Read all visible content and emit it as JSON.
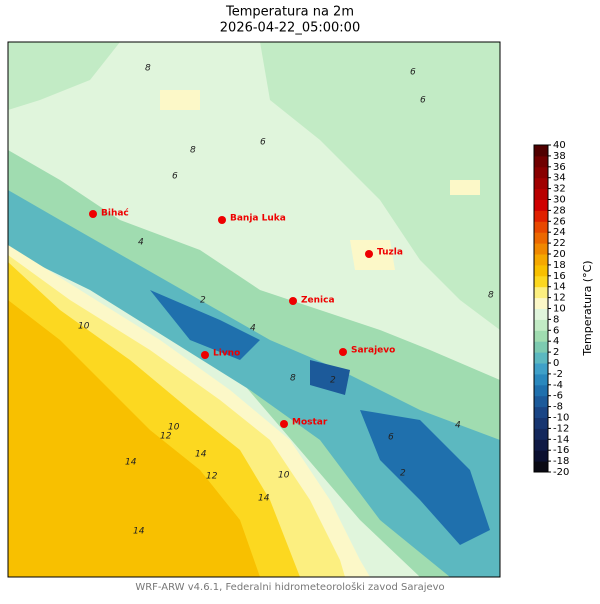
{
  "title": "Temperatura na 2m",
  "subtitle": "2026-04-22_05:00:00",
  "footer": "WRF-ARW v4.6.1, Federalni hidrometeorološki zavod Sarajevo",
  "cities": [
    "Bihać",
    "Banja Luka",
    "Tuzla",
    "Zenica",
    "Sarajevo",
    "Livno",
    "Mostar"
  ],
  "contour_labels": [
    8,
    6,
    6,
    8,
    6,
    4,
    2,
    2,
    4,
    10,
    10,
    12,
    14,
    14,
    14,
    12,
    10,
    14,
    8,
    6,
    4,
    2,
    8,
    6
  ],
  "colorbar": {
    "label": "Temperatura (°C)",
    "lim": [
      -20,
      40
    ],
    "ticks": [
      -20,
      -18,
      -16,
      -14,
      -12,
      -10,
      -8,
      -6,
      -4,
      -2,
      0,
      2,
      4,
      6,
      8,
      10,
      12,
      14,
      16,
      18,
      20,
      22,
      24,
      26,
      28,
      30,
      32,
      34,
      36,
      38,
      40
    ],
    "colors": [
      "#0a0a14",
      "#0b1030",
      "#101a45",
      "#14285c",
      "#173570",
      "#1a4585",
      "#1c5a9a",
      "#1f70ad",
      "#2a88bd",
      "#3fa0c8",
      "#5cb8c0",
      "#7dcab0",
      "#a0dcb0",
      "#c2ebc5",
      "#e0f5dc",
      "#fcf8c8",
      "#fcef80",
      "#fcd820",
      "#f8c000",
      "#f5a800",
      "#f08800",
      "#ec6800",
      "#e84800",
      "#e02000",
      "#d00000",
      "#b80000",
      "#a00000",
      "#880000",
      "#700000",
      "#500000"
    ]
  }
}
